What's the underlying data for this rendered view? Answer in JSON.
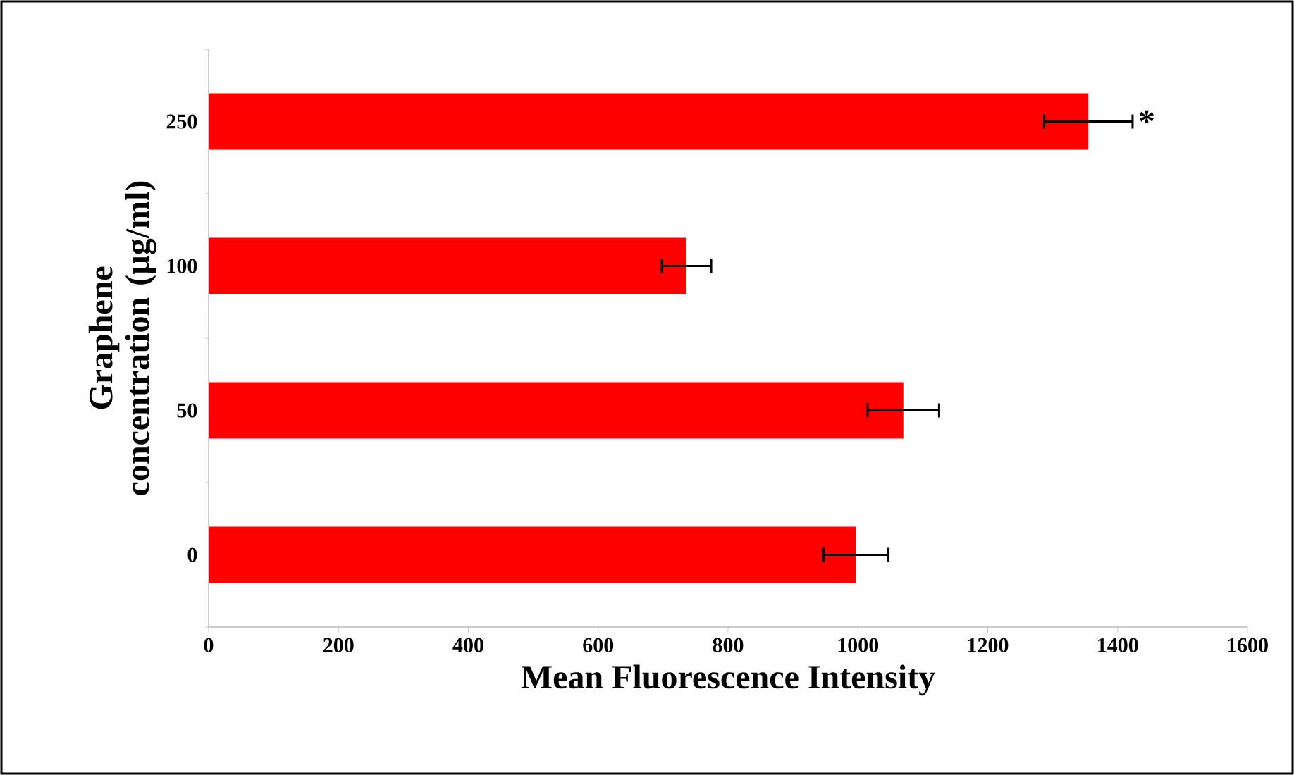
{
  "chart_data": {
    "type": "bar",
    "orientation": "horizontal",
    "xlabel": "Mean Fluorescence Intensity",
    "ylabel": "Graphene concentration (µg/ml)",
    "categories": [
      "250",
      "100",
      "50",
      "0"
    ],
    "values": [
      1355,
      736,
      1070,
      997
    ],
    "errors": [
      68,
      38,
      55,
      50
    ],
    "color": "#ff0000",
    "xlim": [
      0,
      1600
    ],
    "xticks": [
      0,
      200,
      400,
      600,
      800,
      1000,
      1200,
      1400,
      1600
    ],
    "annotations": [
      {
        "text": "*",
        "x": 1424,
        "y": "250"
      }
    ]
  }
}
